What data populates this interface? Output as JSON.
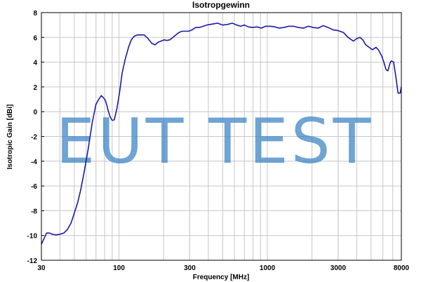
{
  "chart_data": {
    "type": "line",
    "title": "Isotropgewinn",
    "xlabel": "Frequency [MHz]",
    "ylabel": "Isotropic Gain [dBi]",
    "x_scale": "log",
    "xlim": [
      30,
      8000
    ],
    "ylim": [
      -12,
      8
    ],
    "x_tick_labels": [
      "30",
      "100",
      "300",
      "1000",
      "3000",
      "8000"
    ],
    "y_tick_labels": [
      "8",
      "6",
      "4",
      "2",
      "0",
      "-2",
      "-4",
      "-6",
      "-8",
      "-10",
      "-12"
    ],
    "grid": true,
    "watermark": "EUT TEST",
    "line_color": "#1a1aa6",
    "watermark_color": "#3f86c6",
    "series": [
      {
        "x": [
          30,
          31.4,
          32.5,
          34,
          35.5,
          37.5,
          40,
          42.5,
          45,
          47.5,
          50,
          52.5,
          55,
          58,
          62,
          66,
          70,
          73,
          76,
          79,
          81,
          82.5,
          84.5,
          87,
          90,
          93,
          97,
          101,
          105,
          110,
          116,
          121,
          127,
          133,
          139,
          148,
          157,
          167,
          175,
          183,
          192,
          202,
          210,
          220,
          231,
          242,
          254,
          266,
          279,
          294,
          310,
          328,
          348,
          370,
          390,
          412,
          436,
          462,
          500,
          540,
          580,
          622,
          660,
          700,
          746,
          796,
          850,
          910,
          975,
          1050,
          1125,
          1200,
          1290,
          1390,
          1500,
          1620,
          1750,
          1890,
          2040,
          2200,
          2380,
          2570,
          2780,
          3000,
          3250,
          3500,
          3800,
          4000,
          4200,
          4400,
          4600,
          4850,
          5100,
          5400,
          5600,
          5900,
          6100,
          6300,
          6500,
          6700,
          6850,
          7100,
          7350,
          7600,
          7850,
          8000
        ],
        "y": [
          -10.7,
          -10.2,
          -9.8,
          -9.8,
          -9.9,
          -9.95,
          -9.9,
          -9.8,
          -9.5,
          -9.0,
          -8.2,
          -7.4,
          -6.4,
          -5.0,
          -3.0,
          -0.9,
          0.6,
          1.0,
          1.3,
          1.1,
          0.9,
          0.6,
          0.1,
          -0.4,
          -0.7,
          -0.65,
          0.3,
          1.6,
          3.1,
          4.2,
          5.2,
          5.8,
          6.1,
          6.2,
          6.2,
          6.2,
          5.9,
          5.5,
          5.4,
          5.6,
          5.7,
          5.8,
          5.75,
          5.8,
          6.0,
          6.2,
          6.4,
          6.5,
          6.5,
          6.5,
          6.6,
          6.8,
          6.8,
          6.9,
          7.0,
          7.05,
          7.1,
          7.15,
          7.0,
          7.05,
          7.15,
          7.0,
          6.9,
          7.0,
          6.85,
          6.8,
          6.85,
          6.75,
          6.9,
          6.9,
          6.85,
          6.75,
          6.8,
          6.9,
          6.9,
          6.8,
          6.75,
          6.9,
          6.8,
          6.75,
          6.95,
          6.8,
          6.6,
          6.55,
          6.4,
          6.0,
          5.7,
          5.9,
          6.0,
          5.8,
          5.4,
          5.2,
          5.0,
          5.2,
          5.0,
          4.5,
          4.0,
          3.4,
          3.3,
          3.9,
          4.1,
          4.0,
          2.8,
          1.5,
          1.5,
          2.0
        ]
      }
    ]
  }
}
